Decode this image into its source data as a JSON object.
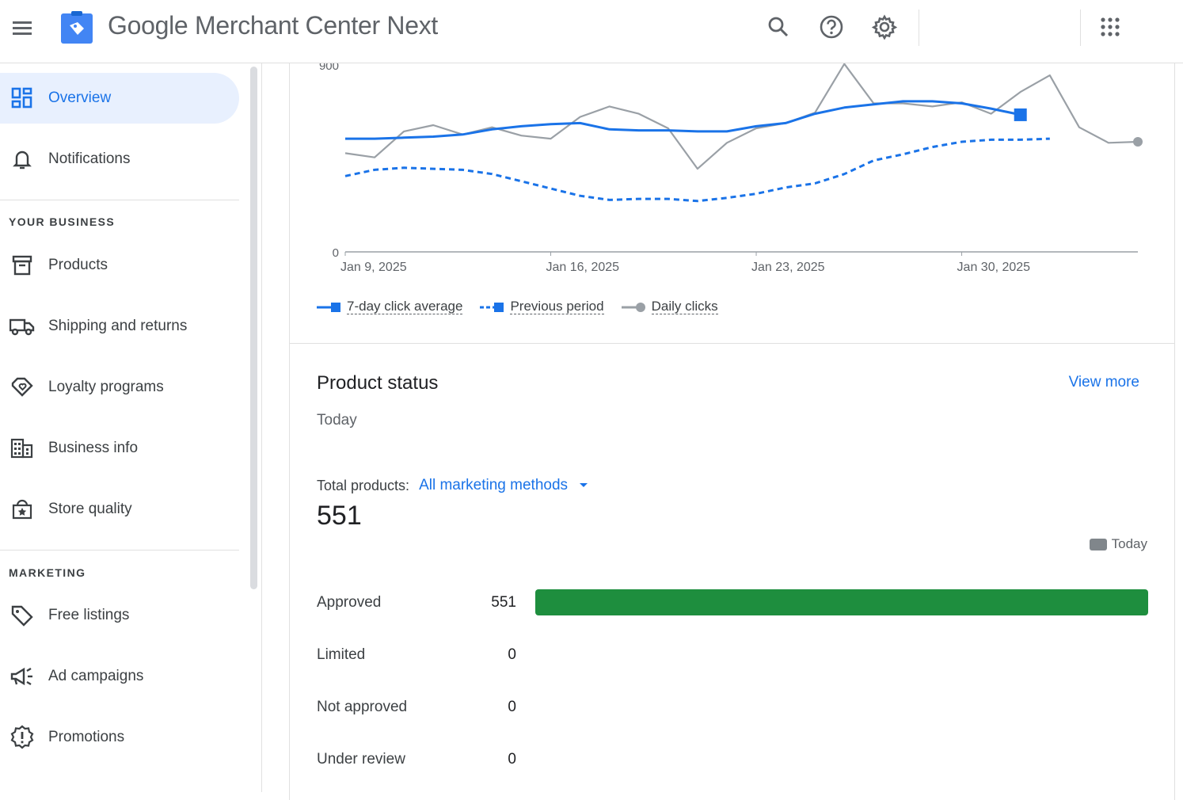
{
  "app": {
    "title": "Google Merchant Center Next"
  },
  "topbar": {
    "icons": [
      "menu-icon",
      "search-icon",
      "help-icon",
      "settings-icon",
      "apps-grid-icon"
    ]
  },
  "sidebar": {
    "items_top": [
      {
        "label": "Overview",
        "icon": "overview-icon",
        "active": true
      },
      {
        "label": "Notifications",
        "icon": "bell-icon",
        "active": false
      }
    ],
    "sections": [
      {
        "heading": "YOUR BUSINESS",
        "items": [
          {
            "label": "Products",
            "icon": "archive-box-icon"
          },
          {
            "label": "Shipping and returns",
            "icon": "truck-icon"
          },
          {
            "label": "Loyalty programs",
            "icon": "heart-tag-icon"
          },
          {
            "label": "Business info",
            "icon": "building-icon"
          },
          {
            "label": "Store quality",
            "icon": "store-badge-icon"
          }
        ]
      },
      {
        "heading": "MARKETING",
        "items": [
          {
            "label": "Free listings",
            "icon": "tag-icon"
          },
          {
            "label": "Ad campaigns",
            "icon": "megaphone-icon"
          },
          {
            "label": "Promotions",
            "icon": "promotion-badge-icon"
          }
        ]
      }
    ]
  },
  "colors": {
    "accent": "#1a73e8",
    "daily": "#9aa0a6",
    "approved_bar": "#1e8e3e"
  },
  "chart_data": {
    "type": "line",
    "y_tick_top": "900",
    "y_tick_zero": "0",
    "ylim": [
      0,
      900
    ],
    "x_tick_labels": [
      "Jan 9, 2025",
      "Jan 16, 2025",
      "Jan 23, 2025",
      "Jan 30, 2025"
    ],
    "x": [
      "2025-01-09",
      "2025-01-10",
      "2025-01-11",
      "2025-01-12",
      "2025-01-13",
      "2025-01-14",
      "2025-01-15",
      "2025-01-16",
      "2025-01-17",
      "2025-01-18",
      "2025-01-19",
      "2025-01-20",
      "2025-01-21",
      "2025-01-22",
      "2025-01-23",
      "2025-01-24",
      "2025-01-25",
      "2025-01-26",
      "2025-01-27",
      "2025-01-28",
      "2025-01-29",
      "2025-01-30",
      "2025-01-31",
      "2025-02-01",
      "2025-02-02",
      "2025-02-03",
      "2025-02-04",
      "2025-02-05"
    ],
    "series": [
      {
        "name": "7-day click average",
        "style": "solid",
        "color": "#1a73e8",
        "values": [
          545,
          545,
          550,
          555,
          565,
          590,
          605,
          615,
          620,
          590,
          585,
          585,
          580,
          580,
          605,
          620,
          665,
          695,
          710,
          725,
          725,
          715,
          690,
          660,
          null,
          null,
          null,
          null
        ],
        "end_marker_index": 23
      },
      {
        "name": "Previous period",
        "style": "dashed",
        "color": "#1a73e8",
        "values": [
          365,
          395,
          405,
          400,
          395,
          375,
          340,
          305,
          270,
          250,
          255,
          255,
          245,
          260,
          280,
          310,
          330,
          375,
          440,
          470,
          505,
          530,
          540,
          540,
          545,
          null,
          null,
          null
        ],
        "end_marker_index": 27
      },
      {
        "name": "Daily clicks",
        "style": "solid",
        "color": "#9aa0a6",
        "values": [
          475,
          455,
          580,
          610,
          565,
          600,
          560,
          545,
          650,
          700,
          665,
          595,
          400,
          525,
          595,
          620,
          670,
          905,
          715,
          715,
          700,
          720,
          665,
          770,
          850,
          600,
          525,
          530
        ],
        "end_marker_index": 27
      }
    ],
    "legend_position": "bottom-left",
    "grid": false
  },
  "product_status": {
    "title": "Product status",
    "view_more": "View more",
    "subtitle": "Today",
    "total_label": "Total products:",
    "marketing_method": "All marketing methods",
    "total_count": "551",
    "legend_today": "Today",
    "rows": [
      {
        "name": "Approved",
        "count": "551",
        "value": 551
      },
      {
        "name": "Limited",
        "count": "0",
        "value": 0
      },
      {
        "name": "Not approved",
        "count": "0",
        "value": 0
      },
      {
        "name": "Under review",
        "count": "0",
        "value": 0
      }
    ],
    "max_value": 551
  }
}
